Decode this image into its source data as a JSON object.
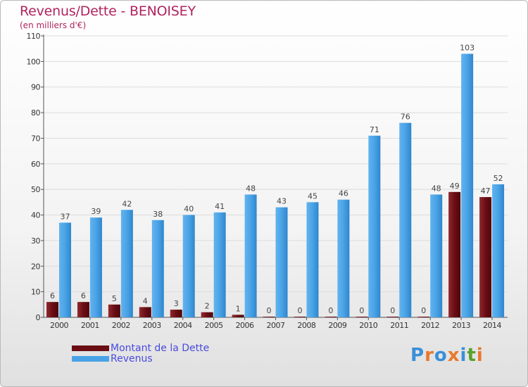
{
  "chart_data": {
    "type": "bar",
    "title": "Revenus/Dette - BENOISEY",
    "subtitle": "(en milliers d'€)",
    "categories": [
      "2000",
      "2001",
      "2002",
      "2003",
      "2004",
      "2005",
      "2006",
      "2007",
      "2008",
      "2009",
      "2010",
      "2011",
      "2012",
      "2013",
      "2014"
    ],
    "series": [
      {
        "name": "Montant de la Dette",
        "color": "#6b0d14",
        "values": [
          6,
          6,
          5,
          4,
          3,
          2,
          1,
          0,
          0,
          0,
          0,
          0,
          0,
          49,
          47
        ]
      },
      {
        "name": "Revenus",
        "color": "#4aa3e6",
        "values": [
          37,
          39,
          42,
          38,
          40,
          41,
          48,
          43,
          45,
          46,
          71,
          76,
          48,
          103,
          52
        ]
      }
    ],
    "ylim": [
      0,
      110
    ],
    "yticks": [
      0,
      10,
      20,
      30,
      40,
      50,
      60,
      70,
      80,
      90,
      100,
      110
    ],
    "grid": true,
    "legend": "bottom-left"
  },
  "logo": {
    "text": "Proxiti",
    "letters": [
      "P",
      "r",
      "o",
      "x",
      "i",
      "t",
      "i"
    ],
    "colors": [
      "#3a8fd8",
      "#e8792e",
      "#3a8fd8",
      "#e8792e",
      "#3a8fd8",
      "#5aa02c",
      "#e8792e"
    ]
  }
}
